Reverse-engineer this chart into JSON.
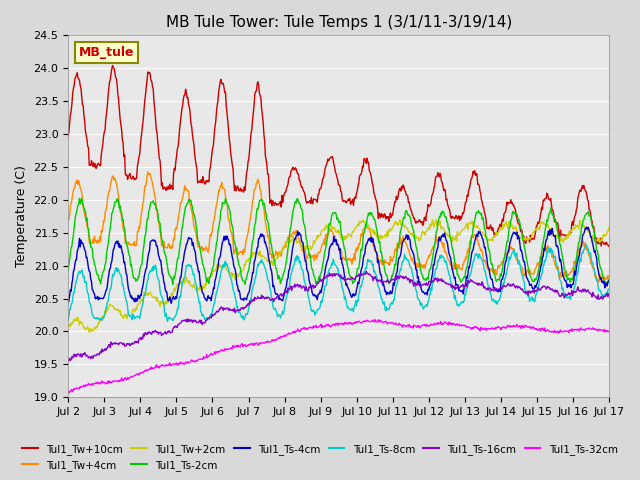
{
  "title": "MB Tule Tower: Tule Temps 1 (3/1/11-3/19/14)",
  "ylabel": "Temperature (C)",
  "ylim": [
    19.0,
    24.5
  ],
  "yticks": [
    19.0,
    19.5,
    20.0,
    20.5,
    21.0,
    21.5,
    22.0,
    22.5,
    23.0,
    23.5,
    24.0,
    24.5
  ],
  "xtick_labels": [
    "Jul 2",
    "Jul 3",
    "Jul 4",
    "Jul 5",
    "Jul 6",
    "Jul 7",
    "Jul 8",
    "Jul 9",
    "Jul 10",
    "Jul 11",
    "Jul 12",
    "Jul 13",
    "Jul 14",
    "Jul 15",
    "Jul 16",
    "Jul 17"
  ],
  "series_colors": {
    "Tul1_Tw+10cm": "#cc0000",
    "Tul1_Tw+4cm": "#ff8c00",
    "Tul1_Tw+2cm": "#cccc00",
    "Tul1_Ts-2cm": "#00cc00",
    "Tul1_Ts-4cm": "#0000cc",
    "Tul1_Ts-8cm": "#00cccc",
    "Tul1_Ts-16cm": "#8800cc",
    "Tul1_Ts-32cm": "#ff00ff"
  },
  "legend_box_color": "#ffffcc",
  "legend_box_text": "MB_tule",
  "legend_box_text_color": "#cc0000",
  "fig_bg_color": "#d9d9d9",
  "plot_bg_color": "#e8e8e8"
}
